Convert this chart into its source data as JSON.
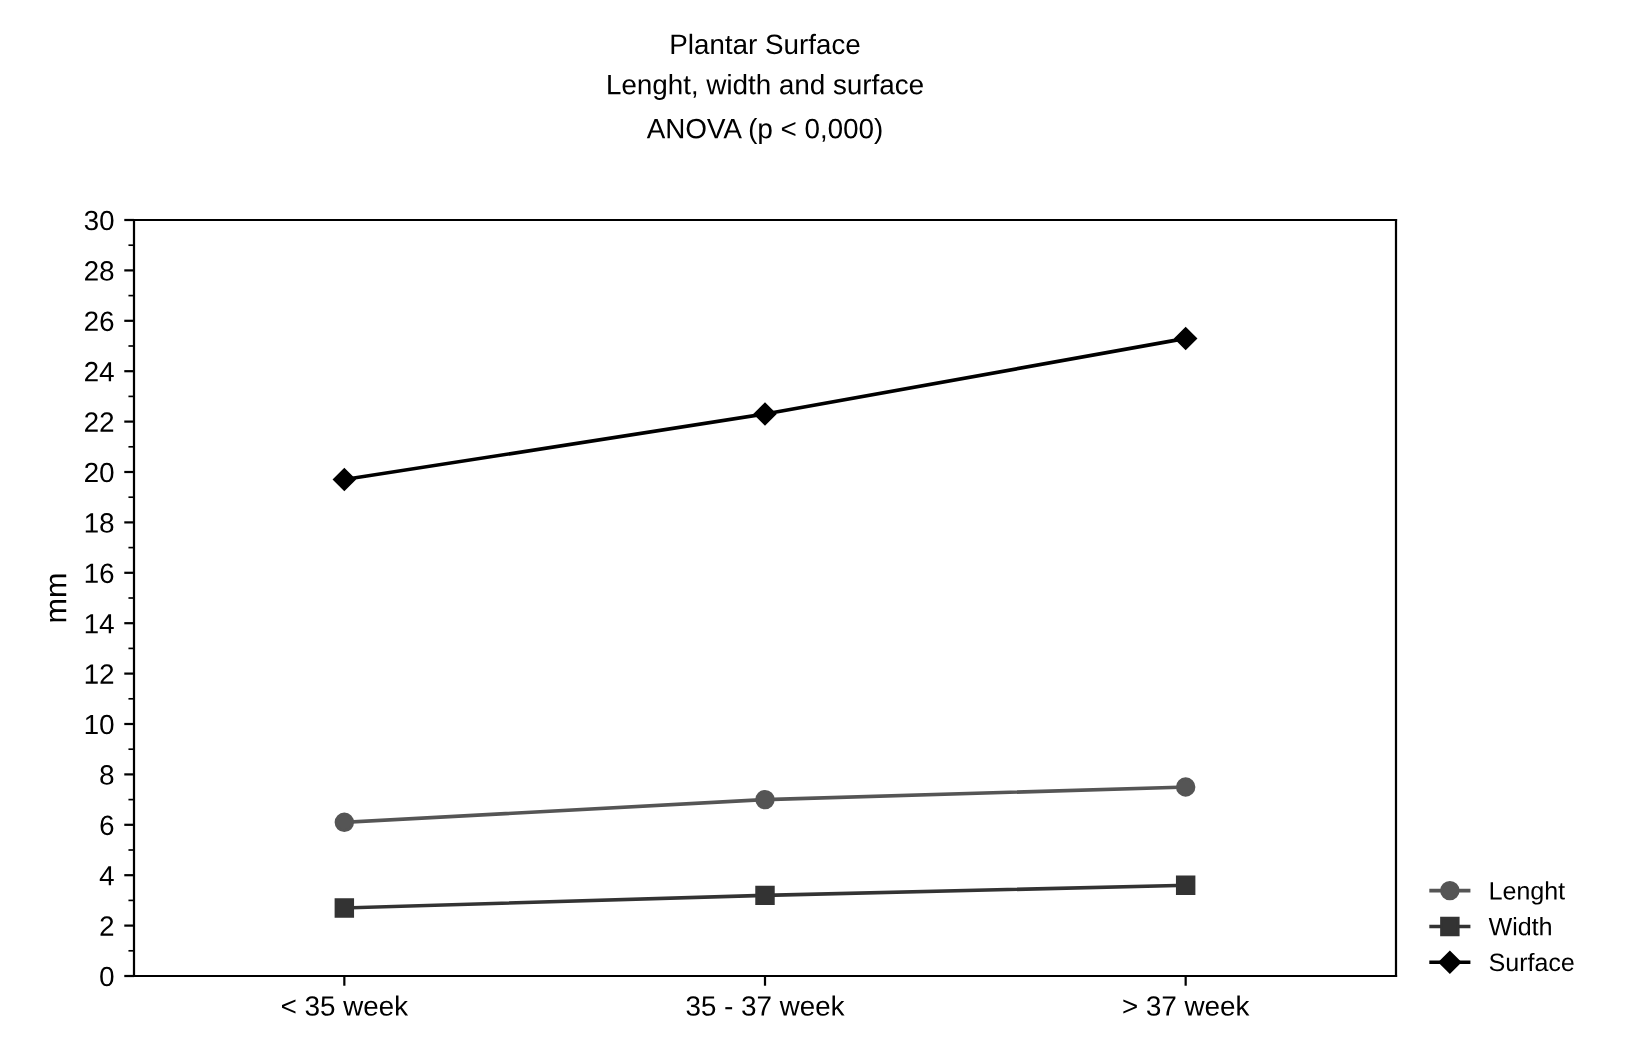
{
  "chart_data": {
    "type": "line",
    "title": "Plantar Surface",
    "subtitle": "Lenght, width and surface\nANOVA (p < 0,000)",
    "ylabel": "mm",
    "categories": [
      "< 35 week",
      "35 - 37 week",
      "> 37 week"
    ],
    "series": [
      {
        "name": "Lenght",
        "color": "#555555",
        "marker": "circle",
        "values": [
          6.1,
          7.0,
          7.5
        ]
      },
      {
        "name": "Width",
        "color": "#333333",
        "marker": "square",
        "values": [
          2.7,
          3.2,
          3.6
        ]
      },
      {
        "name": "Surface",
        "color": "#000000",
        "marker": "diamond",
        "values": [
          19.7,
          22.3,
          25.3
        ]
      }
    ],
    "ylim": [
      0,
      30
    ],
    "yticks": [
      0,
      2,
      4,
      6,
      8,
      10,
      12,
      14,
      16,
      18,
      20,
      22,
      24,
      26,
      28,
      30
    ],
    "grid": false,
    "legend": "bottom right",
    "line_style": "solid"
  }
}
